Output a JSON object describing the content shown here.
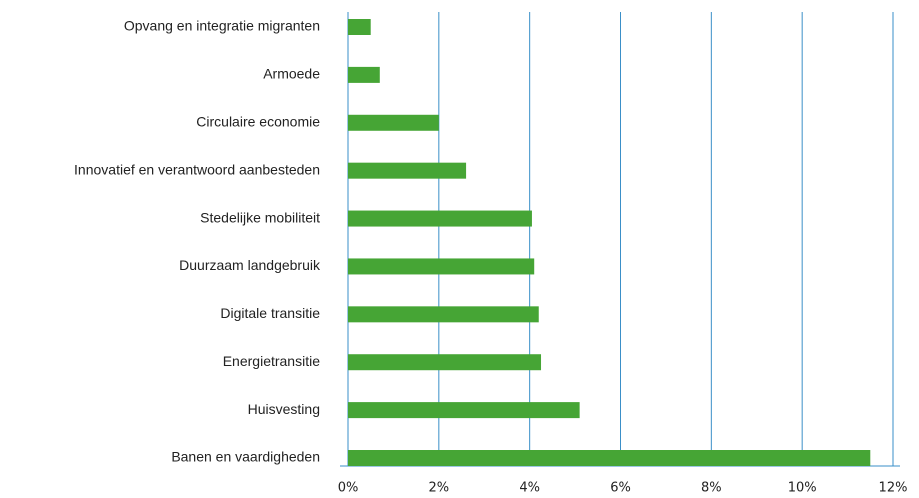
{
  "chart_data": {
    "type": "hbar",
    "categories": [
      "Opvang en integratie migranten",
      "Armoede",
      "Circulaire economie",
      "Innovatief en verantwoord aanbesteden",
      "Stedelijke mobiliteit",
      "Duurzaam landgebruik",
      "Digitale transitie",
      "Energietransitie",
      "Huisvesting",
      "Banen en vaardigheden"
    ],
    "values": [
      0.5,
      0.7,
      2.0,
      2.6,
      4.05,
      4.1,
      4.2,
      4.25,
      5.1,
      11.5
    ],
    "color": "#46a535",
    "xlim": [
      0,
      12
    ],
    "xticks": [
      {
        "value": 0,
        "label": "0%"
      },
      {
        "value": 2,
        "label": "2%"
      },
      {
        "value": 4,
        "label": "4%"
      },
      {
        "value": 6,
        "label": "6%"
      },
      {
        "value": 8,
        "label": "8%"
      },
      {
        "value": 10,
        "label": "10%"
      },
      {
        "value": 12,
        "label": "12%"
      }
    ],
    "grid": true
  }
}
